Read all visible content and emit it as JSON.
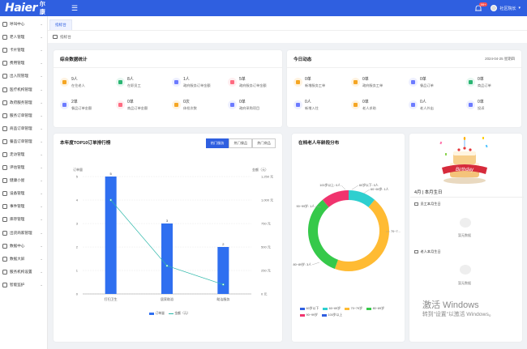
{
  "header": {
    "logo": "Haier",
    "app_name": "海尔康养",
    "notification_count": "99+",
    "username": "社区院长",
    "colors": {
      "brand": "#2f5fe0"
    }
  },
  "sidebar": {
    "items": [
      {
        "label": "呼叫中心",
        "icon": "phone-icon"
      },
      {
        "label": "老人管理",
        "icon": "user-icon"
      },
      {
        "label": "卡片管理",
        "icon": "card-icon"
      },
      {
        "label": "费用管理",
        "icon": "fee-icon"
      },
      {
        "label": "出入院管理",
        "icon": "door-icon"
      },
      {
        "label": "医疗机构管理",
        "icon": "hospital-icon"
      },
      {
        "label": "政府服务管理",
        "icon": "government-icon"
      },
      {
        "label": "服务订单管理",
        "icon": "order-icon"
      },
      {
        "label": "商品订单管理",
        "icon": "goods-icon"
      },
      {
        "label": "餐品订单管理",
        "icon": "meal-icon"
      },
      {
        "label": "走访管理",
        "icon": "visit-icon"
      },
      {
        "label": "评估管理",
        "icon": "assessment-icon"
      },
      {
        "label": "健康小屋",
        "icon": "health-icon"
      },
      {
        "label": "设备管理",
        "icon": "device-icon"
      },
      {
        "label": "事件管理",
        "icon": "event-icon"
      },
      {
        "label": "库存管理",
        "icon": "inventory-icon"
      },
      {
        "label": "出货商家管理",
        "icon": "merchant-icon"
      },
      {
        "label": "数据中心",
        "icon": "data-icon"
      },
      {
        "label": "数据大屏",
        "icon": "screen-icon"
      },
      {
        "label": "服务机构设置",
        "icon": "settings-icon"
      },
      {
        "label": "智能监护",
        "icon": "monitor-icon"
      }
    ]
  },
  "tabs": [
    {
      "label": "指标台"
    }
  ],
  "breadcrumb": {
    "label": "指标台"
  },
  "summary": {
    "title": "综合数据统计",
    "stats": [
      {
        "value": "9人",
        "label": "在住老人",
        "color": "#fff3e0",
        "accent": "#f5a623"
      },
      {
        "value": "8人",
        "label": "在职员工",
        "color": "#e6f7f0",
        "accent": "#2bb673"
      },
      {
        "value": "1人",
        "label": "政府服务订单金额",
        "color": "#eef0ff",
        "accent": "#6c7bff"
      },
      {
        "value": "5单",
        "label": "政府服务订单金额",
        "color": "#ffeef0",
        "accent": "#ff6b81"
      },
      {
        "value": "2单",
        "label": "餐品订单金额",
        "color": "#eef0ff",
        "accent": "#6c7bff"
      },
      {
        "value": "0单",
        "label": "商品订单金额",
        "color": "#ffeef0",
        "accent": "#ff6b81"
      },
      {
        "value": "0次",
        "label": "体检次数",
        "color": "#fff3e0",
        "accent": "#f5a623"
      },
      {
        "value": "0单",
        "label": "政府采购项目",
        "color": "#eef0ff",
        "accent": "#6c7bff"
      }
    ]
  },
  "today": {
    "title": "今日动态",
    "date": "2024-04-25 星期四",
    "stats": [
      {
        "value": "0单",
        "label": "新增服务工单",
        "color": "#fff3e0",
        "accent": "#f5a623"
      },
      {
        "value": "0单",
        "label": "政府服务工单",
        "color": "#fff3e0",
        "accent": "#f5a623"
      },
      {
        "value": "0单",
        "label": "餐品订单",
        "color": "#eef0ff",
        "accent": "#6c7bff"
      },
      {
        "value": "0单",
        "label": "商品订单",
        "color": "#e6f7f0",
        "accent": "#2bb673"
      },
      {
        "value": "0人",
        "label": "新增入住",
        "color": "#eef0ff",
        "accent": "#6c7bff"
      },
      {
        "value": "0单",
        "label": "老人求助",
        "color": "#fff3e0",
        "accent": "#f5a623"
      },
      {
        "value": "0人",
        "label": "老人外出",
        "color": "#eef0ff",
        "accent": "#6c7bff"
      },
      {
        "value": "0单",
        "label": "投诉",
        "color": "#eef0ff",
        "accent": "#6c7bff"
      }
    ]
  },
  "ranking": {
    "title": "本年度TOP10订单排行榜",
    "filters": [
      {
        "label": "热门服务",
        "active": true
      },
      {
        "label": "热门餐品",
        "active": false
      },
      {
        "label": "热门商品",
        "active": false
      }
    ],
    "y_left_label": "订单量",
    "y_right_label": "金额（元）",
    "y_left_ticks": [
      "5",
      "4",
      "3",
      "2",
      "1",
      "0"
    ],
    "y_right_ticks": [
      "1,250 元",
      "1,000 元",
      "750 元",
      "500 元",
      "250 元",
      "0 元"
    ],
    "legend_bar": "订单量",
    "legend_line": "金额（元）"
  },
  "age_dist": {
    "title": "在档老人年龄段分布",
    "labels": [
      "60岁以下: 0人",
      "60~69岁: 1人",
      "70~7...",
      "80~89岁: 3人",
      "90~99岁: 1人",
      "100岁以上: 0人"
    ],
    "legend": [
      {
        "label": "60岁以下",
        "color": "#2f5fe0"
      },
      {
        "label": "60~69岁",
        "color": "#2ecfcf"
      },
      {
        "label": "70~79岁",
        "color": "#ffbb33"
      },
      {
        "label": "80~89岁",
        "color": "#36c94a"
      },
      {
        "label": "90~99岁",
        "color": "#f0346e"
      },
      {
        "label": "100岁以上",
        "color": "#2f5fe0"
      }
    ]
  },
  "birthday": {
    "title": "4月 | 本月生日",
    "sections": [
      {
        "label": "员工本月生日",
        "empty": "暂无数据"
      },
      {
        "label": "老人本月生日",
        "empty": "暂无数据"
      }
    ],
    "cake_text": "Birthday"
  },
  "watermark": {
    "line1": "激活 Windows",
    "line2": "转到\"设置\"以激活 Windows。"
  },
  "chart_data": [
    {
      "type": "bar",
      "title": "本年度TOP10订单排行榜",
      "categories": [
        "打扫卫生",
        "居家助浴",
        "助洁服务"
      ],
      "series": [
        {
          "name": "订单量",
          "type": "bar",
          "values": [
            5,
            3,
            2
          ],
          "color": "#2f6ff0"
        },
        {
          "name": "金额（元）",
          "type": "line",
          "values": [
            1000,
            300,
            100
          ],
          "color": "#2ab7a9"
        }
      ],
      "ylabel": "订单量",
      "ylim": [
        0,
        5
      ],
      "y2label": "金额（元）",
      "y2lim": [
        0,
        1250
      ]
    },
    {
      "type": "pie",
      "title": "在档老人年龄段分布",
      "categories": [
        "60岁以下",
        "60~69岁",
        "70~79岁",
        "80~89岁",
        "90~99岁",
        "100岁以上"
      ],
      "values": [
        0,
        1,
        4,
        3,
        1,
        0
      ],
      "colors": [
        "#2f5fe0",
        "#2ecfcf",
        "#ffbb33",
        "#36c94a",
        "#f0346e",
        "#2f5fe0"
      ]
    }
  ]
}
